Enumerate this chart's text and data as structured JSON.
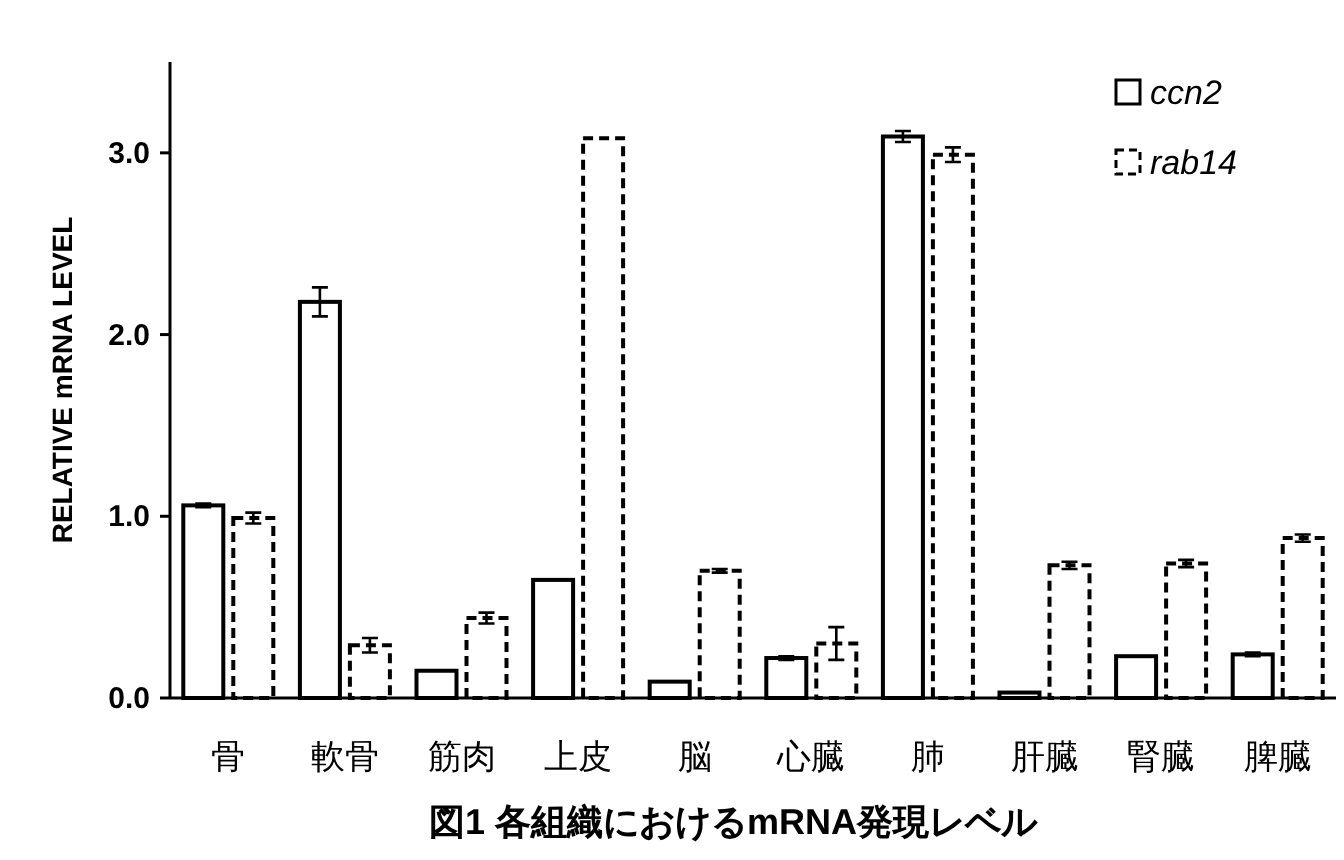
{
  "chart_data": {
    "type": "bar",
    "title": "図1 各組織におけるmRNA発現レベル",
    "ylabel": "RELATIVE mRNA LEVEL",
    "categories": [
      "骨",
      "軟骨",
      "筋肉",
      "上皮",
      "脳",
      "心臓",
      "肺",
      "肝臓",
      "腎臓",
      "脾臓"
    ],
    "series": [
      {
        "name": "ccn2",
        "color": "#000000",
        "line_style": "solid",
        "values": [
          1.06,
          2.18,
          0.15,
          0.65,
          0.09,
          0.22,
          3.09,
          0.03,
          0.23,
          0.24
        ],
        "errors": [
          0.01,
          0.08,
          null,
          null,
          null,
          0.01,
          0.03,
          null,
          null,
          0.01
        ]
      },
      {
        "name": "rab14",
        "color": "#000000",
        "line_style": "dashed",
        "values": [
          0.99,
          0.29,
          0.44,
          3.08,
          0.7,
          0.3,
          2.99,
          0.73,
          0.74,
          0.88
        ],
        "errors": [
          0.03,
          0.04,
          0.03,
          null,
          0.01,
          0.09,
          0.04,
          0.02,
          0.02,
          0.02
        ]
      }
    ],
    "ylim": [
      0,
      3.5
    ],
    "yticks": [
      {
        "value": 0,
        "label": "0.0"
      },
      {
        "value": 1,
        "label": "1.0"
      },
      {
        "value": 2,
        "label": "2.0"
      },
      {
        "value": 3,
        "label": "3.0"
      }
    ],
    "legend": "top right",
    "grid": false
  }
}
